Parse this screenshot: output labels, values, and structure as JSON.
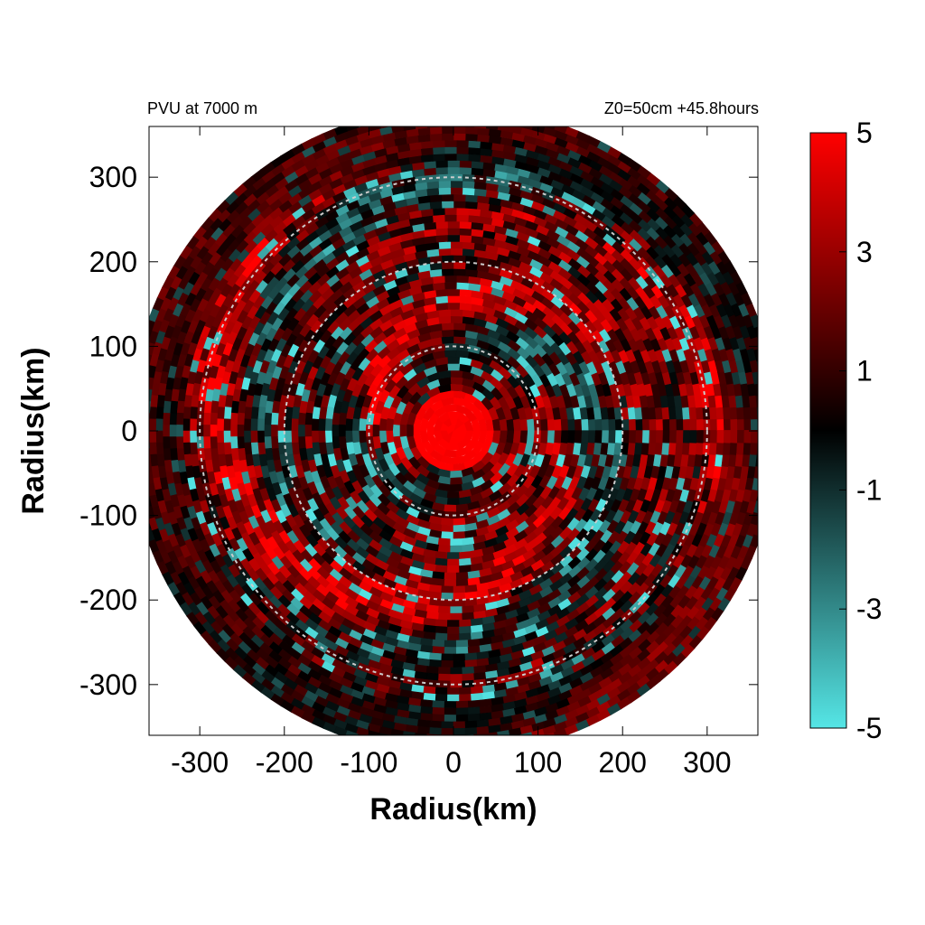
{
  "chart_data": {
    "type": "heatmap",
    "title_left": "PVU at  7000 m",
    "title_right": "Z0=50cm  +45.8hours",
    "xlabel": "Radius(km)",
    "ylabel": "Radius(km)",
    "xlim": [
      -360,
      360
    ],
    "ylim": [
      -360,
      360
    ],
    "xticks": [
      -300,
      -200,
      -100,
      0,
      100,
      200,
      300
    ],
    "yticks": [
      -300,
      -200,
      -100,
      0,
      100,
      200,
      300
    ],
    "domain_radius_km": 380,
    "reference_circles_km": [
      100,
      200,
      300
    ],
    "colorbar": {
      "range": [
        -5,
        5
      ],
      "ticks": [
        5,
        3,
        1,
        -1,
        -3,
        -5
      ],
      "colors": [
        "#55e6e6",
        "#000000",
        "#ff0000"
      ]
    },
    "field_description": "Positive PV (red) concentrated in core r<50 km (~5 PVU); spiral bands of mixed positive/negative anomalies out to 380 km"
  }
}
